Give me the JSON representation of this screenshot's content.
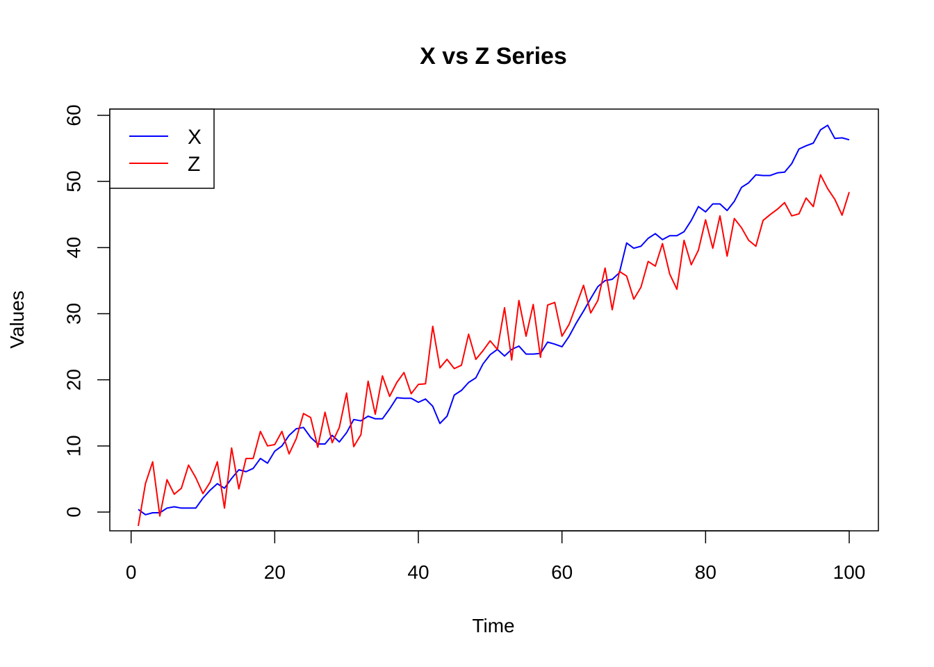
{
  "chart_data": {
    "type": "line",
    "title": "X vs Z Series",
    "xlabel": "Time",
    "ylabel": "Values",
    "xlim": [
      1,
      100
    ],
    "ylim": [
      -2.5,
      61
    ],
    "x_ticks": [
      0,
      20,
      40,
      60,
      80,
      100
    ],
    "y_ticks": [
      0,
      10,
      20,
      30,
      40,
      50,
      60
    ],
    "legend": {
      "position": "top-left",
      "entries": [
        "X",
        "Z"
      ]
    },
    "x": [
      1,
      2,
      3,
      4,
      5,
      6,
      7,
      8,
      9,
      10,
      11,
      12,
      13,
      14,
      15,
      16,
      17,
      18,
      19,
      20,
      21,
      22,
      23,
      24,
      25,
      26,
      27,
      28,
      29,
      30,
      31,
      32,
      33,
      34,
      35,
      36,
      37,
      38,
      39,
      40,
      41,
      42,
      43,
      44,
      45,
      46,
      47,
      48,
      49,
      50,
      51,
      52,
      53,
      54,
      55,
      56,
      57,
      58,
      59,
      60,
      61,
      62,
      63,
      64,
      65,
      66,
      67,
      68,
      69,
      70,
      71,
      72,
      73,
      74,
      75,
      76,
      77,
      78,
      79,
      80,
      81,
      82,
      83,
      84,
      85,
      86,
      87,
      88,
      89,
      90,
      91,
      92,
      93,
      94,
      95,
      96,
      97,
      98,
      99,
      100
    ],
    "series": [
      {
        "name": "X",
        "color": "#0000ff",
        "values": [
          0.4,
          -0.4,
          -0.1,
          -0.1,
          0.6,
          0.8,
          0.6,
          0.6,
          0.6,
          2.1,
          3.3,
          4.3,
          3.6,
          5.1,
          6.4,
          6.1,
          6.6,
          8.1,
          7.4,
          9.2,
          10.0,
          11.6,
          12.6,
          12.8,
          11.3,
          10.3,
          10.3,
          11.6,
          10.6,
          12.0,
          14.0,
          13.8,
          14.5,
          14.1,
          14.1,
          15.6,
          17.3,
          17.2,
          17.2,
          16.6,
          17.1,
          16.0,
          13.4,
          14.5,
          17.7,
          18.4,
          19.6,
          20.3,
          22.4,
          23.8,
          24.6,
          23.6,
          24.6,
          25.1,
          23.9,
          23.9,
          24.0,
          25.7,
          25.4,
          25.0,
          26.6,
          28.6,
          30.4,
          32.3,
          34.1,
          35.0,
          35.2,
          36.2,
          40.7,
          39.9,
          40.2,
          41.4,
          42.1,
          41.2,
          41.8,
          41.8,
          42.4,
          44.1,
          46.2,
          45.4,
          46.6,
          46.6,
          45.6,
          47.0,
          49.1,
          49.8,
          51.0,
          50.9,
          50.9,
          51.3,
          51.4,
          52.7,
          54.9,
          55.4,
          55.8,
          57.8,
          58.5,
          56.5,
          56.6,
          56.3
        ]
      },
      {
        "name": "Z",
        "color": "#ff0000",
        "values": [
          -2.1,
          4.3,
          7.6,
          -0.6,
          4.9,
          2.7,
          3.6,
          7.1,
          5.2,
          2.8,
          4.5,
          7.6,
          0.6,
          9.7,
          3.5,
          8.1,
          8.1,
          12.2,
          10.0,
          10.2,
          12.2,
          8.8,
          11.1,
          14.9,
          14.3,
          9.8,
          15.1,
          10.5,
          12.8,
          18.0,
          9.9,
          11.7,
          19.8,
          14.8,
          20.6,
          17.5,
          19.6,
          21.1,
          17.9,
          19.3,
          19.4,
          28.1,
          21.8,
          23.1,
          21.7,
          22.2,
          26.9,
          23.1,
          24.4,
          25.9,
          24.6,
          30.9,
          23.0,
          32.0,
          26.6,
          31.4,
          23.4,
          31.3,
          31.7,
          26.6,
          28.4,
          31.3,
          34.3,
          30.1,
          32.0,
          36.9,
          30.6,
          36.4,
          35.7,
          32.2,
          34.0,
          37.9,
          37.2,
          40.6,
          36.0,
          33.7,
          41.1,
          37.4,
          39.6,
          44.2,
          39.9,
          44.8,
          38.7,
          44.4,
          43.0,
          41.1,
          40.2,
          44.1,
          45.0,
          45.8,
          46.8,
          44.8,
          45.1,
          47.5,
          46.2,
          51.0,
          48.9,
          47.3,
          44.9,
          48.4
        ]
      }
    ]
  }
}
